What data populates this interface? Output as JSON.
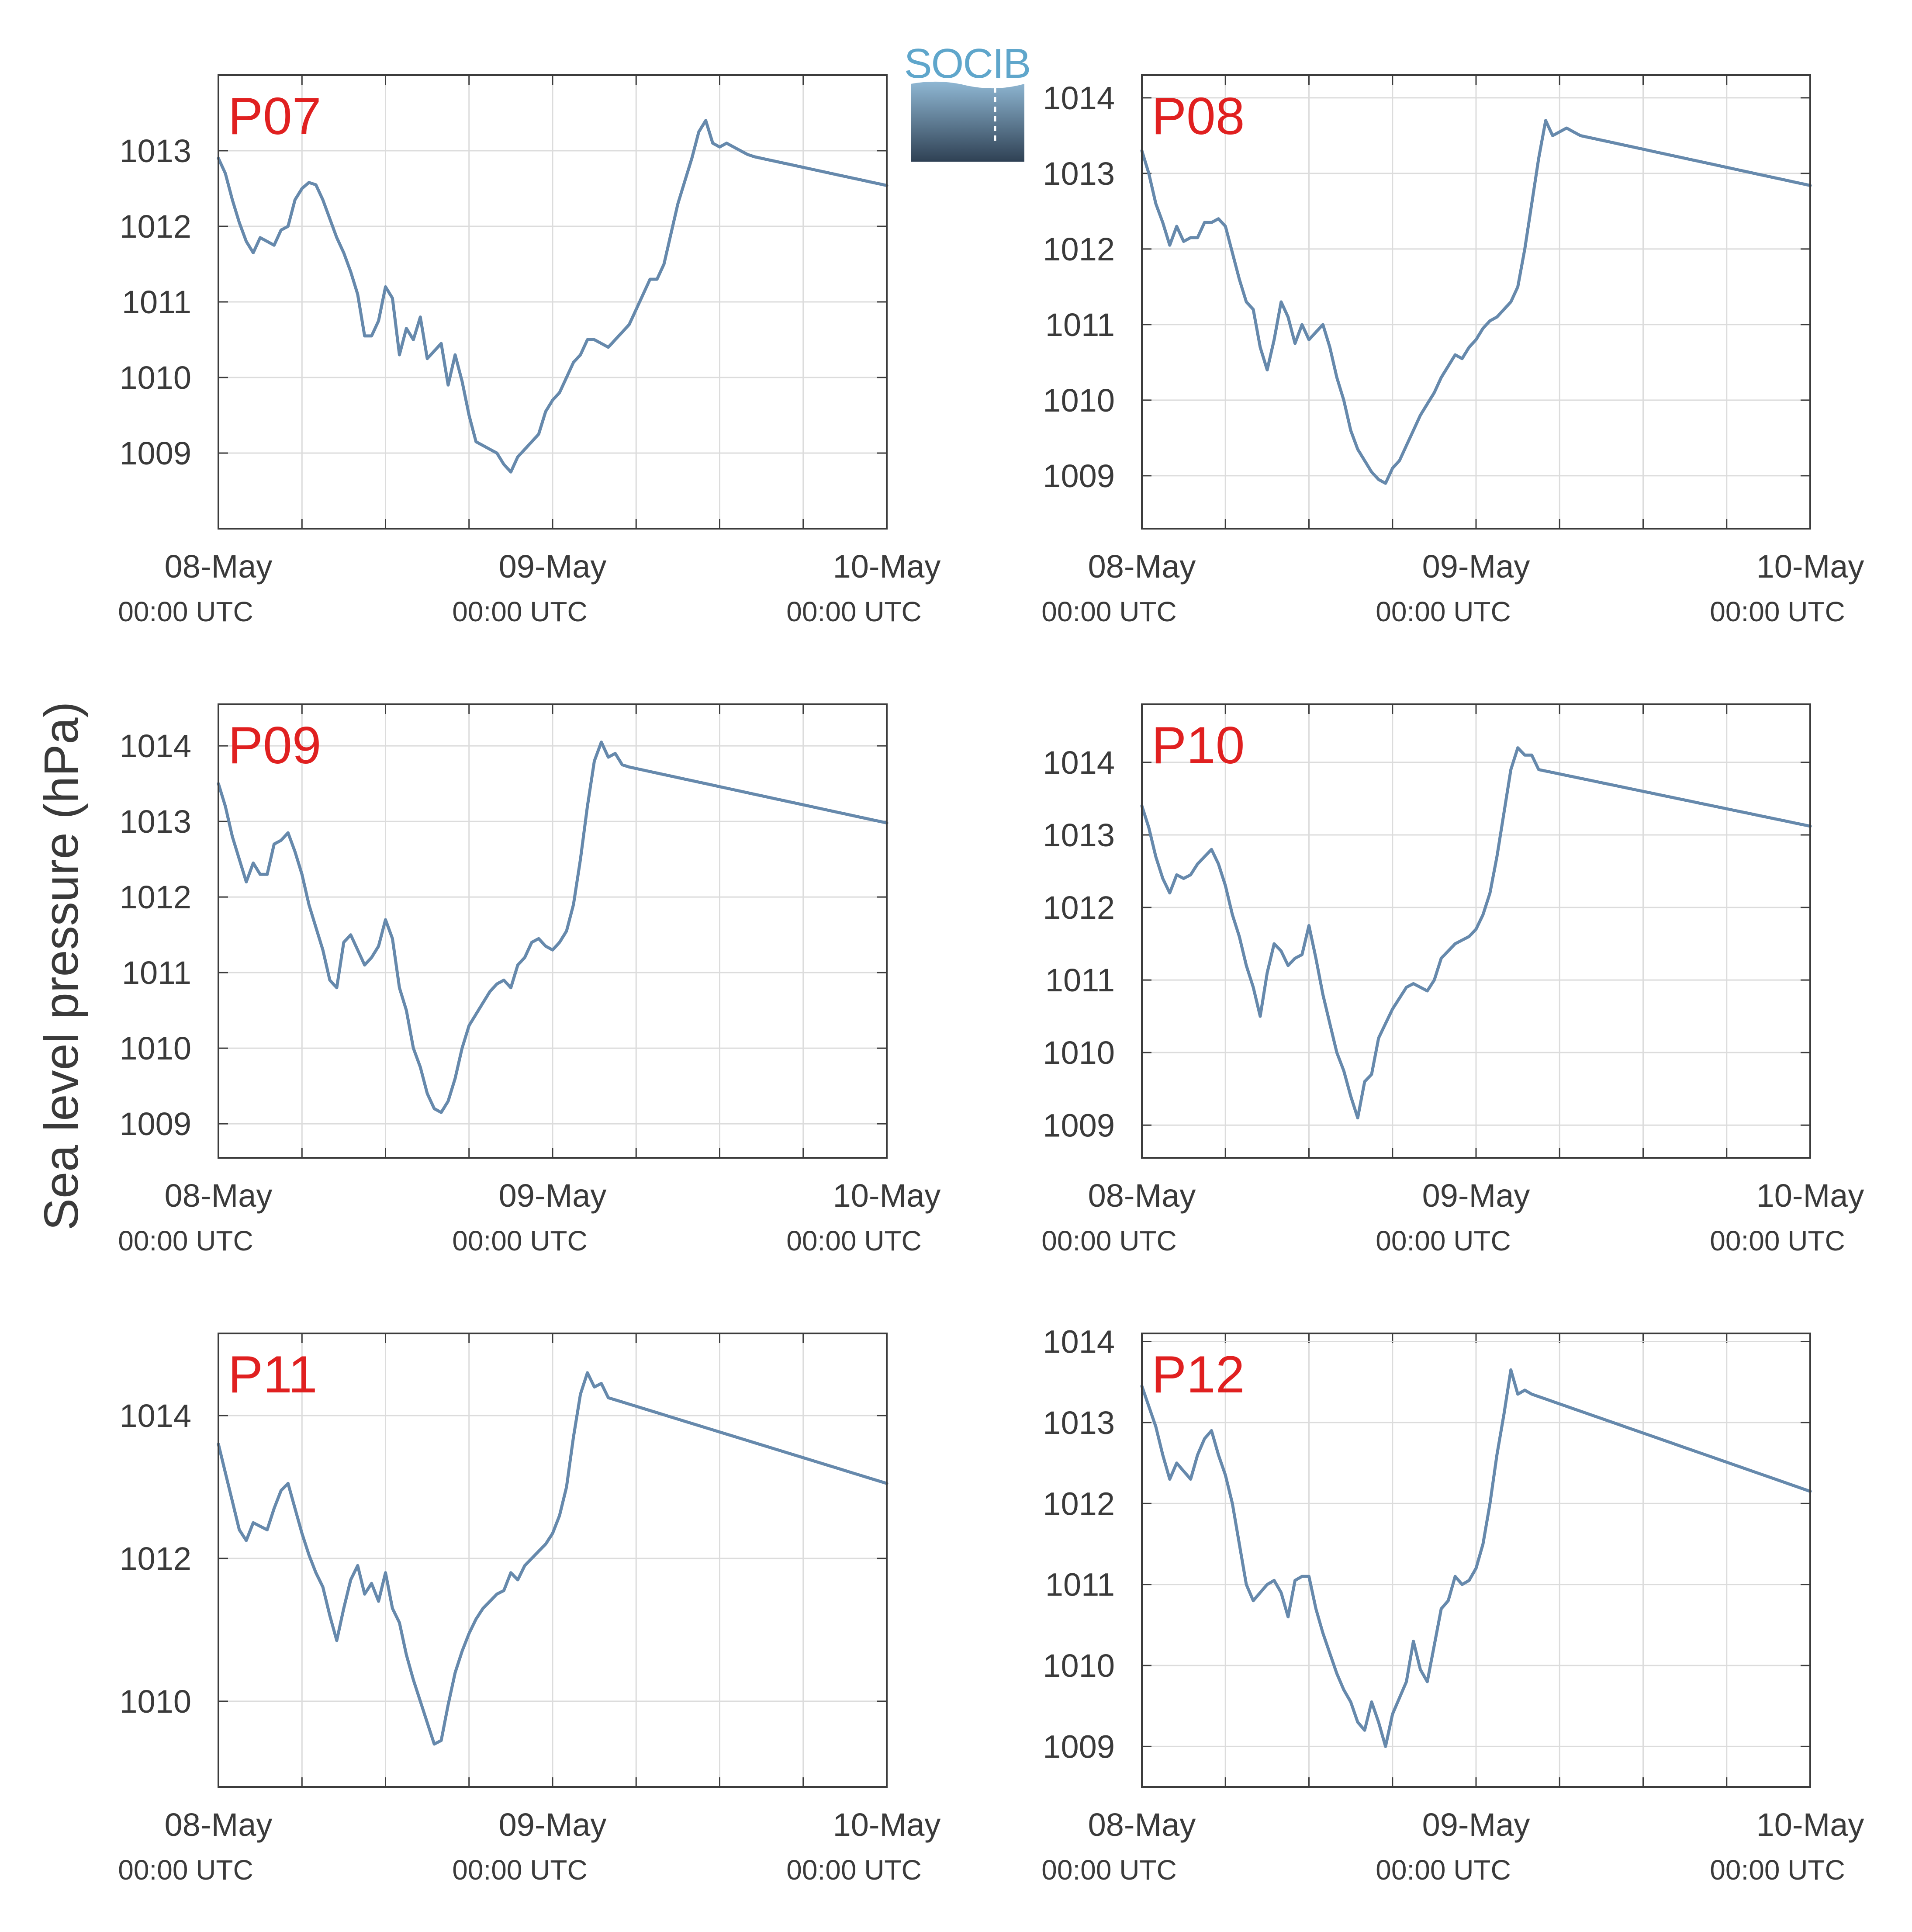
{
  "figure": {
    "ylabel": "Sea level pressure (hPa)",
    "logo": {
      "text": "SOCIB",
      "text_color": "#5FA6CB",
      "gradient_top": "#8FB7D3",
      "gradient_bottom": "#2F4154"
    }
  },
  "style": {
    "line_color": "#6689AC",
    "station_color": "#E02020",
    "grid_color": "#DCDCDC",
    "axis_color": "#3C3C3C"
  },
  "x_ticks": [
    {
      "date": "08-May",
      "time": "00:00 UTC"
    },
    {
      "date": "09-May",
      "time": "00:00 UTC"
    },
    {
      "date": "10-May",
      "time": "00:00 UTC"
    }
  ],
  "chart_data": [
    {
      "type": "line",
      "station": "P07",
      "xlim": [
        0,
        48
      ],
      "ylim": [
        1008.0,
        1014.0
      ],
      "yticks": [
        1009,
        1010,
        1011,
        1012,
        1013
      ],
      "grid": true,
      "x": [
        0,
        0.5,
        1,
        1.5,
        2,
        2.5,
        3,
        3.5,
        4,
        4.5,
        5,
        5.5,
        6,
        6.5,
        7,
        7.5,
        8,
        8.5,
        9,
        9.5,
        10,
        10.5,
        11,
        11.5,
        12,
        12.5,
        13,
        13.5,
        14,
        14.5,
        15,
        15.5,
        16,
        16.5,
        17,
        17.5,
        18,
        18.5,
        19,
        19.5,
        20,
        20.5,
        21,
        21.5,
        22,
        22.5,
        23,
        23.5,
        24,
        24.5,
        25,
        25.5,
        26,
        26.5,
        27,
        27.5,
        28,
        28.5,
        29,
        29.5,
        30,
        30.5,
        31,
        31.5,
        32,
        32.5,
        33,
        33.5,
        34,
        34.5,
        35,
        35.5,
        36,
        36.5,
        37,
        37.5,
        38,
        38.5,
        39,
        39.5,
        40,
        40.5,
        41,
        41.5,
        42,
        42.5,
        43,
        43.5,
        44,
        44.5,
        45,
        45.5,
        46,
        46.5,
        47,
        47.5,
        48
      ],
      "y": [
        1012.9,
        1012.7,
        1012.35,
        1012.05,
        1011.8,
        1011.65,
        1011.85,
        1011.8,
        1011.75,
        1011.95,
        1012.0,
        1012.35,
        1012.5,
        1012.58,
        1012.55,
        1012.35,
        1012.1,
        1011.85,
        1011.65,
        1011.4,
        1011.1,
        1010.55,
        1010.55,
        1010.75,
        1011.2,
        1011.05,
        1010.3,
        1010.65,
        1010.5,
        1010.8,
        1010.25,
        1010.35,
        1010.45,
        1009.9,
        1010.3,
        1009.95,
        1009.5,
        1009.15,
        1009.1,
        1009.05,
        1009.0,
        1008.85,
        1008.75,
        1008.95,
        1009.05,
        1009.15,
        1009.25,
        1009.55,
        1009.7,
        1009.8,
        1010.0,
        1010.2,
        1010.3,
        1010.5,
        1010.5,
        1010.45,
        1010.4,
        1010.5,
        1010.6,
        1010.7,
        1010.9,
        1011.1,
        1011.3,
        1011.3,
        1011.5,
        1011.9,
        1012.3,
        1012.6,
        1012.9,
        1013.25,
        1013.4,
        1013.1,
        1013.05,
        1013.1,
        1013.05,
        1013.0,
        1012.95,
        1012.92,
        1012.9,
        1012.88,
        1012.86,
        1012.84,
        1012.82,
        1012.8,
        1012.78,
        1012.76,
        1012.74,
        1012.72,
        1012.7,
        1012.68,
        1012.66,
        1012.64,
        1012.62,
        1012.6,
        1012.58,
        1012.56,
        1012.54
      ]
    },
    {
      "type": "line",
      "station": "P08",
      "xlim": [
        0,
        48
      ],
      "ylim": [
        1008.3,
        1014.3
      ],
      "yticks": [
        1009,
        1010,
        1011,
        1012,
        1013,
        1014
      ],
      "grid": true,
      "x": [
        0,
        0.5,
        1,
        1.5,
        2,
        2.5,
        3,
        3.5,
        4,
        4.5,
        5,
        5.5,
        6,
        6.5,
        7,
        7.5,
        8,
        8.5,
        9,
        9.5,
        10,
        10.5,
        11,
        11.5,
        12,
        12.5,
        13,
        13.5,
        14,
        14.5,
        15,
        15.5,
        16,
        16.5,
        17,
        17.5,
        18,
        18.5,
        19,
        19.5,
        20,
        20.5,
        21,
        21.5,
        22,
        22.5,
        23,
        23.5,
        24,
        24.5,
        25,
        25.5,
        26,
        26.5,
        27,
        27.5,
        28,
        28.5,
        29,
        29.5,
        30,
        30.5,
        31,
        31.5,
        32,
        32.5,
        33,
        33.5,
        34,
        34.5,
        35,
        35.5,
        36,
        36.5,
        37,
        37.5,
        38,
        38.5,
        39,
        39.5,
        40,
        40.5,
        41,
        41.5,
        42,
        42.5,
        43,
        43.5,
        44,
        44.5,
        45,
        45.5,
        46,
        46.5,
        47,
        47.5,
        48
      ],
      "y": [
        1013.3,
        1013.0,
        1012.6,
        1012.35,
        1012.05,
        1012.3,
        1012.1,
        1012.15,
        1012.15,
        1012.35,
        1012.35,
        1012.4,
        1012.3,
        1011.95,
        1011.6,
        1011.3,
        1011.2,
        1010.7,
        1010.4,
        1010.8,
        1011.3,
        1011.1,
        1010.75,
        1011.0,
        1010.8,
        1010.9,
        1011.0,
        1010.7,
        1010.3,
        1010.0,
        1009.6,
        1009.35,
        1009.2,
        1009.05,
        1008.95,
        1008.9,
        1009.1,
        1009.2,
        1009.4,
        1009.6,
        1009.8,
        1009.95,
        1010.1,
        1010.3,
        1010.45,
        1010.6,
        1010.55,
        1010.7,
        1010.8,
        1010.95,
        1011.05,
        1011.1,
        1011.2,
        1011.3,
        1011.5,
        1012.0,
        1012.6,
        1013.2,
        1013.7,
        1013.5,
        1013.55,
        1013.6,
        1013.55,
        1013.5,
        1013.48,
        1013.46,
        1013.44,
        1013.42,
        1013.4,
        1013.38,
        1013.36,
        1013.34,
        1013.32,
        1013.3,
        1013.28,
        1013.26,
        1013.24,
        1013.22,
        1013.2,
        1013.18,
        1013.16,
        1013.14,
        1013.12,
        1013.1,
        1013.08,
        1013.06,
        1013.04,
        1013.02,
        1013.0,
        1012.98,
        1012.96,
        1012.94,
        1012.92,
        1012.9,
        1012.88,
        1012.86,
        1012.84
      ]
    },
    {
      "type": "line",
      "station": "P09",
      "xlim": [
        0,
        48
      ],
      "ylim": [
        1008.55,
        1014.55
      ],
      "yticks": [
        1009,
        1010,
        1011,
        1012,
        1013,
        1014
      ],
      "grid": true,
      "x": [
        0,
        0.5,
        1,
        1.5,
        2,
        2.5,
        3,
        3.5,
        4,
        4.5,
        5,
        5.5,
        6,
        6.5,
        7,
        7.5,
        8,
        8.5,
        9,
        9.5,
        10,
        10.5,
        11,
        11.5,
        12,
        12.5,
        13,
        13.5,
        14,
        14.5,
        15,
        15.5,
        16,
        16.5,
        17,
        17.5,
        18,
        18.5,
        19,
        19.5,
        20,
        20.5,
        21,
        21.5,
        22,
        22.5,
        23,
        23.5,
        24,
        24.5,
        25,
        25.5,
        26,
        26.5,
        27,
        27.5,
        28,
        28.5,
        29,
        29.5,
        30,
        30.5,
        31,
        31.5,
        32,
        32.5,
        33,
        33.5,
        34,
        34.5,
        35,
        35.5,
        36,
        36.5,
        37,
        37.5,
        38,
        38.5,
        39,
        39.5,
        40,
        40.5,
        41,
        41.5,
        42,
        42.5,
        43,
        43.5,
        44,
        44.5,
        45,
        45.5,
        46,
        46.5,
        47,
        47.5,
        48
      ],
      "y": [
        1013.5,
        1013.2,
        1012.8,
        1012.5,
        1012.2,
        1012.45,
        1012.3,
        1012.3,
        1012.7,
        1012.75,
        1012.85,
        1012.6,
        1012.3,
        1011.9,
        1011.6,
        1011.3,
        1010.9,
        1010.8,
        1011.4,
        1011.5,
        1011.3,
        1011.1,
        1011.2,
        1011.35,
        1011.7,
        1011.45,
        1010.8,
        1010.5,
        1010.0,
        1009.75,
        1009.4,
        1009.2,
        1009.15,
        1009.3,
        1009.6,
        1010.0,
        1010.3,
        1010.45,
        1010.6,
        1010.75,
        1010.85,
        1010.9,
        1010.8,
        1011.1,
        1011.2,
        1011.4,
        1011.45,
        1011.35,
        1011.3,
        1011.4,
        1011.55,
        1011.9,
        1012.5,
        1013.2,
        1013.8,
        1014.05,
        1013.85,
        1013.9,
        1013.75,
        1013.72,
        1013.7,
        1013.68,
        1013.66,
        1013.64,
        1013.62,
        1013.6,
        1013.58,
        1013.56,
        1013.54,
        1013.52,
        1013.5,
        1013.48,
        1013.46,
        1013.44,
        1013.42,
        1013.4,
        1013.38,
        1013.36,
        1013.34,
        1013.32,
        1013.3,
        1013.28,
        1013.26,
        1013.24,
        1013.22,
        1013.2,
        1013.18,
        1013.16,
        1013.14,
        1013.12,
        1013.1,
        1013.08,
        1013.06,
        1013.04,
        1013.02,
        1013.0,
        1012.98
      ]
    },
    {
      "type": "line",
      "station": "P10",
      "xlim": [
        0,
        48
      ],
      "ylim": [
        1008.55,
        1014.8
      ],
      "yticks": [
        1009,
        1010,
        1011,
        1012,
        1013,
        1014
      ],
      "grid": true,
      "x": [
        0,
        0.5,
        1,
        1.5,
        2,
        2.5,
        3,
        3.5,
        4,
        4.5,
        5,
        5.5,
        6,
        6.5,
        7,
        7.5,
        8,
        8.5,
        9,
        9.5,
        10,
        10.5,
        11,
        11.5,
        12,
        12.5,
        13,
        13.5,
        14,
        14.5,
        15,
        15.5,
        16,
        16.5,
        17,
        17.5,
        18,
        18.5,
        19,
        19.5,
        20,
        20.5,
        21,
        21.5,
        22,
        22.5,
        23,
        23.5,
        24,
        24.5,
        25,
        25.5,
        26,
        26.5,
        27,
        27.5,
        28,
        28.5,
        29,
        29.5,
        30,
        30.5,
        31,
        31.5,
        32,
        32.5,
        33,
        33.5,
        34,
        34.5,
        35,
        35.5,
        36,
        36.5,
        37,
        37.5,
        38,
        38.5,
        39,
        39.5,
        40,
        40.5,
        41,
        41.5,
        42,
        42.5,
        43,
        43.5,
        44,
        44.5,
        45,
        45.5,
        46,
        46.5,
        47,
        47.5,
        48
      ],
      "y": [
        1013.4,
        1013.1,
        1012.7,
        1012.4,
        1012.2,
        1012.45,
        1012.4,
        1012.45,
        1012.6,
        1012.7,
        1012.8,
        1012.6,
        1012.3,
        1011.9,
        1011.6,
        1011.2,
        1010.9,
        1010.5,
        1011.1,
        1011.5,
        1011.4,
        1011.2,
        1011.3,
        1011.35,
        1011.75,
        1011.3,
        1010.8,
        1010.4,
        1010.0,
        1009.75,
        1009.4,
        1009.1,
        1009.6,
        1009.7,
        1010.2,
        1010.4,
        1010.6,
        1010.75,
        1010.9,
        1010.95,
        1010.9,
        1010.85,
        1011.0,
        1011.3,
        1011.4,
        1011.5,
        1011.55,
        1011.6,
        1011.7,
        1011.9,
        1012.2,
        1012.7,
        1013.3,
        1013.9,
        1014.2,
        1014.1,
        1014.1,
        1013.9,
        1013.88,
        1013.86,
        1013.84,
        1013.82,
        1013.8,
        1013.78,
        1013.76,
        1013.74,
        1013.72,
        1013.7,
        1013.68,
        1013.66,
        1013.64,
        1013.62,
        1013.6,
        1013.58,
        1013.56,
        1013.54,
        1013.52,
        1013.5,
        1013.48,
        1013.46,
        1013.44,
        1013.42,
        1013.4,
        1013.38,
        1013.36,
        1013.34,
        1013.32,
        1013.3,
        1013.28,
        1013.26,
        1013.24,
        1013.22,
        1013.2,
        1013.18,
        1013.16,
        1013.14,
        1013.12
      ]
    },
    {
      "type": "line",
      "station": "P11",
      "xlim": [
        0,
        48
      ],
      "ylim": [
        1008.8,
        1015.15
      ],
      "yticks": [
        1010,
        1012,
        1014
      ],
      "grid": true,
      "x": [
        0,
        0.5,
        1,
        1.5,
        2,
        2.5,
        3,
        3.5,
        4,
        4.5,
        5,
        5.5,
        6,
        6.5,
        7,
        7.5,
        8,
        8.5,
        9,
        9.5,
        10,
        10.5,
        11,
        11.5,
        12,
        12.5,
        13,
        13.5,
        14,
        14.5,
        15,
        15.5,
        16,
        16.5,
        17,
        17.5,
        18,
        18.5,
        19,
        19.5,
        20,
        20.5,
        21,
        21.5,
        22,
        22.5,
        23,
        23.5,
        24,
        24.5,
        25,
        25.5,
        26,
        26.5,
        27,
        27.5,
        28,
        28.5,
        29,
        29.5,
        30,
        30.5,
        31,
        31.5,
        32,
        32.5,
        33,
        33.5,
        34,
        34.5,
        35,
        35.5,
        36,
        36.5,
        37,
        37.5,
        38,
        38.5,
        39,
        39.5,
        40,
        40.5,
        41,
        41.5,
        42,
        42.5,
        43,
        43.5,
        44,
        44.5,
        45,
        45.5,
        46,
        46.5,
        47,
        47.5,
        48
      ],
      "y": [
        1013.6,
        1013.2,
        1012.8,
        1012.4,
        1012.25,
        1012.5,
        1012.45,
        1012.4,
        1012.7,
        1012.95,
        1013.05,
        1012.7,
        1012.35,
        1012.05,
        1011.8,
        1011.6,
        1011.2,
        1010.85,
        1011.3,
        1011.7,
        1011.9,
        1011.5,
        1011.65,
        1011.4,
        1011.8,
        1011.3,
        1011.1,
        1010.65,
        1010.3,
        1010.0,
        1009.7,
        1009.4,
        1009.45,
        1009.95,
        1010.4,
        1010.7,
        1010.95,
        1011.15,
        1011.3,
        1011.4,
        1011.5,
        1011.55,
        1011.8,
        1011.7,
        1011.9,
        1012.0,
        1012.1,
        1012.2,
        1012.35,
        1012.6,
        1013.0,
        1013.7,
        1014.3,
        1014.6,
        1014.4,
        1014.45,
        1014.25,
        1014.22,
        1014.19,
        1014.16,
        1014.13,
        1014.1,
        1014.07,
        1014.04,
        1014.01,
        1013.98,
        1013.95,
        1013.92,
        1013.89,
        1013.86,
        1013.83,
        1013.8,
        1013.77,
        1013.74,
        1013.71,
        1013.68,
        1013.65,
        1013.62,
        1013.59,
        1013.56,
        1013.53,
        1013.5,
        1013.47,
        1013.44,
        1013.41,
        1013.38,
        1013.35,
        1013.32,
        1013.29,
        1013.26,
        1013.23,
        1013.2,
        1013.17,
        1013.14,
        1013.11,
        1013.08,
        1013.05
      ]
    },
    {
      "type": "line",
      "station": "P12",
      "xlim": [
        0,
        48
      ],
      "ylim": [
        1008.5,
        1014.1
      ],
      "yticks": [
        1009,
        1010,
        1011,
        1012,
        1013,
        1014
      ],
      "grid": true,
      "x": [
        0,
        0.5,
        1,
        1.5,
        2,
        2.5,
        3,
        3.5,
        4,
        4.5,
        5,
        5.5,
        6,
        6.5,
        7,
        7.5,
        8,
        8.5,
        9,
        9.5,
        10,
        10.5,
        11,
        11.5,
        12,
        12.5,
        13,
        13.5,
        14,
        14.5,
        15,
        15.5,
        16,
        16.5,
        17,
        17.5,
        18,
        18.5,
        19,
        19.5,
        20,
        20.5,
        21,
        21.5,
        22,
        22.5,
        23,
        23.5,
        24,
        24.5,
        25,
        25.5,
        26,
        26.5,
        27,
        27.5,
        28,
        28.5,
        29,
        29.5,
        30,
        30.5,
        31,
        31.5,
        32,
        32.5,
        33,
        33.5,
        34,
        34.5,
        35,
        35.5,
        36,
        36.5,
        37,
        37.5,
        38,
        38.5,
        39,
        39.5,
        40,
        40.5,
        41,
        41.5,
        42,
        42.5,
        43,
        43.5,
        44,
        44.5,
        45,
        45.5,
        46,
        46.5,
        47,
        47.5,
        48
      ],
      "y": [
        1013.45,
        1013.2,
        1012.95,
        1012.6,
        1012.3,
        1012.5,
        1012.4,
        1012.3,
        1012.6,
        1012.8,
        1012.9,
        1012.6,
        1012.35,
        1012.0,
        1011.5,
        1011.0,
        1010.8,
        1010.9,
        1011.0,
        1011.05,
        1010.9,
        1010.6,
        1011.05,
        1011.1,
        1011.1,
        1010.7,
        1010.4,
        1010.15,
        1009.9,
        1009.7,
        1009.55,
        1009.3,
        1009.2,
        1009.55,
        1009.3,
        1009.0,
        1009.4,
        1009.6,
        1009.8,
        1010.3,
        1009.95,
        1009.8,
        1010.25,
        1010.7,
        1010.8,
        1011.1,
        1011.0,
        1011.05,
        1011.2,
        1011.5,
        1012.0,
        1012.6,
        1013.1,
        1013.65,
        1013.35,
        1013.4,
        1013.35,
        1013.32,
        1013.29,
        1013.26,
        1013.23,
        1013.2,
        1013.17,
        1013.14,
        1013.11,
        1013.08,
        1013.05,
        1013.02,
        1012.99,
        1012.96,
        1012.93,
        1012.9,
        1012.87,
        1012.84,
        1012.81,
        1012.78,
        1012.75,
        1012.72,
        1012.69,
        1012.66,
        1012.63,
        1012.6,
        1012.57,
        1012.54,
        1012.51,
        1012.48,
        1012.45,
        1012.42,
        1012.39,
        1012.36,
        1012.33,
        1012.3,
        1012.27,
        1012.24,
        1012.21,
        1012.18,
        1012.15
      ]
    }
  ]
}
